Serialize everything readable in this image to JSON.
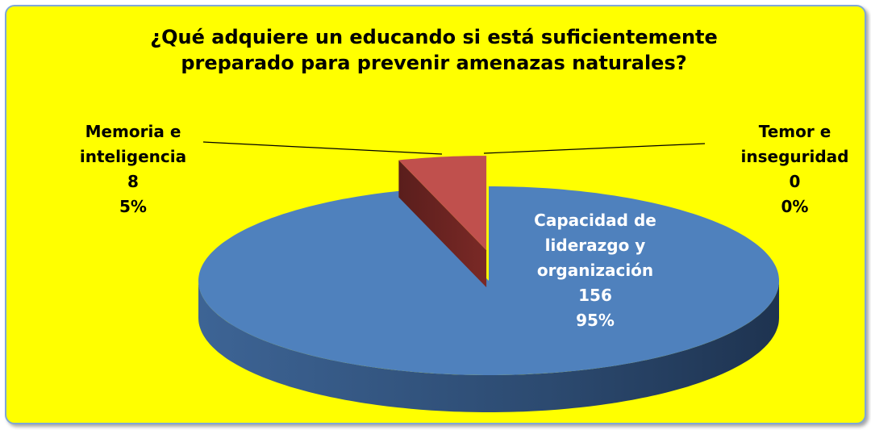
{
  "chart_data": {
    "type": "pie3d",
    "title": "¿Qué adquiere un educando si está suficientemente preparado para prevenir amenazas naturales?",
    "categories": [
      "Capacidad de liderazgo y organización",
      "Memoria e inteligencia",
      "Temor e inseguridad"
    ],
    "values": [
      156,
      8,
      0
    ],
    "percent_labels": [
      "95%",
      "5%",
      "0%"
    ],
    "colors": [
      "#4f81bd",
      "#c0504d",
      "#9bbb59"
    ]
  }
}
